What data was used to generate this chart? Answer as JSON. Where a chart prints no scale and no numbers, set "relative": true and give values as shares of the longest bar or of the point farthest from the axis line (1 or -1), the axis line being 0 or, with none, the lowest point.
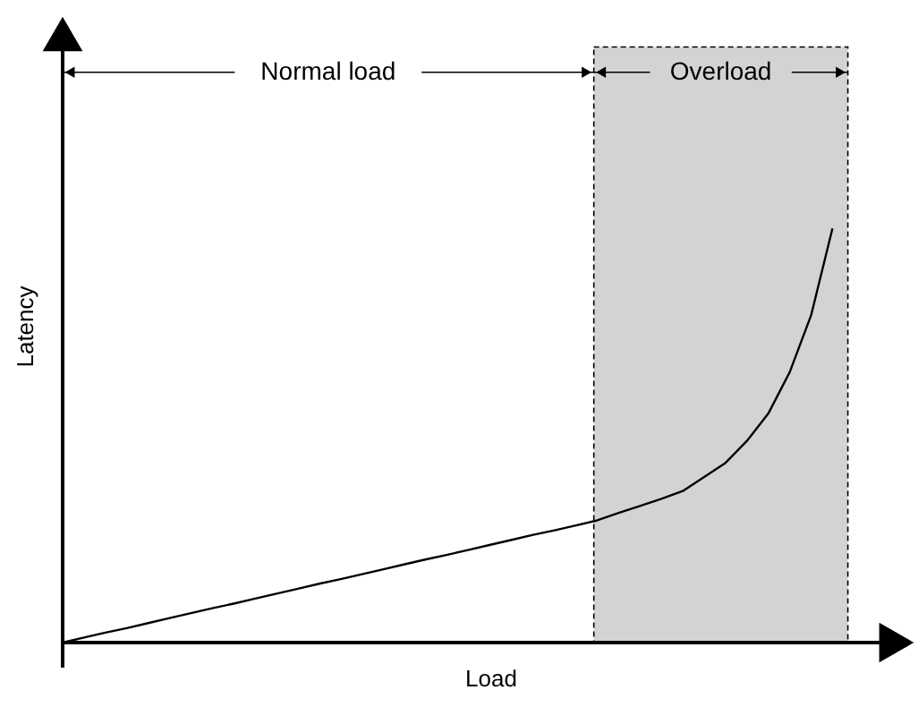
{
  "chart_data": {
    "type": "line",
    "relative": true,
    "xlabel": "Load",
    "ylabel": "Latency",
    "tick_labels": false,
    "grid": false,
    "categories": [
      null,
      null,
      null,
      null,
      null,
      null,
      null,
      null,
      null,
      null,
      null,
      null,
      null,
      null,
      null,
      null,
      null,
      null,
      null,
      null,
      null,
      null,
      null,
      null,
      null,
      null,
      null,
      null,
      null,
      null,
      null,
      null,
      null,
      null,
      null,
      null,
      null
    ],
    "series": [
      {
        "color": "#000000",
        "values": [
          0,
          0.012,
          0.024,
          0.035,
          0.047,
          0.059,
          0.071,
          0.083,
          0.094,
          0.106,
          0.118,
          0.13,
          0.142,
          0.153,
          0.165,
          0.177,
          0.189,
          0.201,
          0.212,
          0.224,
          0.236,
          0.248,
          0.26,
          0.271,
          0.283,
          0.295,
          0.313,
          0.33,
          0.347,
          0.366,
          0.4,
          0.434,
          0.487,
          0.553,
          0.653,
          0.79,
          1
        ]
      }
    ],
    "annotations": [
      "Normal load",
      "Overload"
    ]
  }
}
